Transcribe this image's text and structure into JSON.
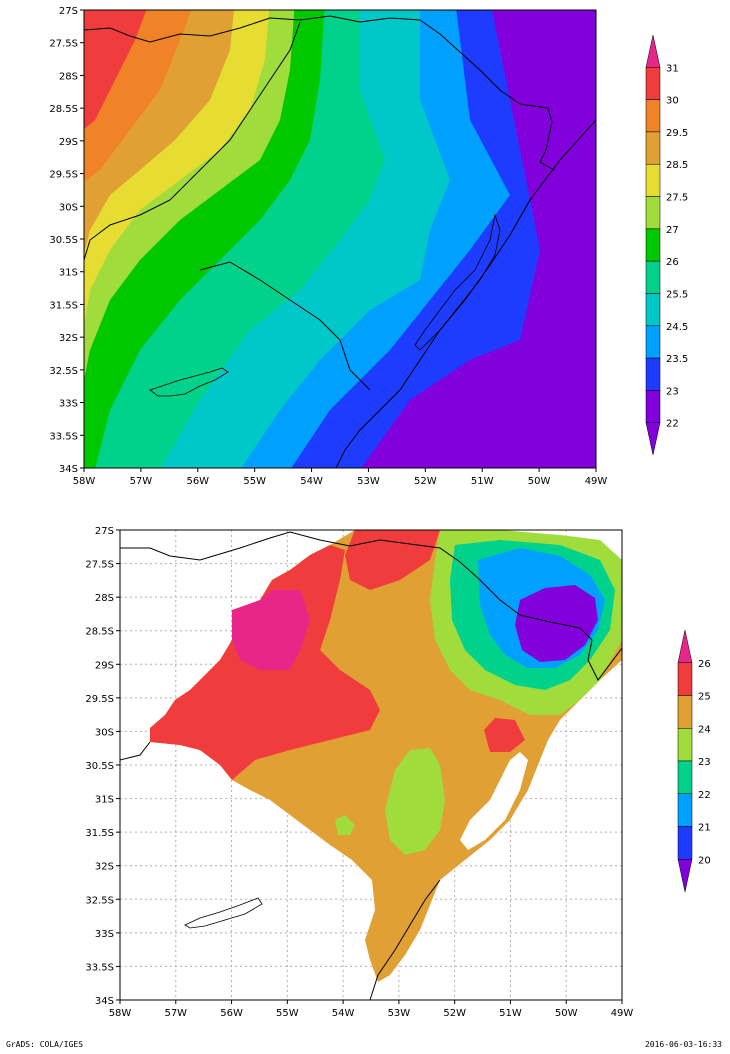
{
  "map_top": {
    "x_ticks": [
      "58W",
      "57W",
      "56W",
      "55W",
      "54W",
      "53W",
      "52W",
      "51W",
      "50W",
      "49W"
    ],
    "y_ticks": [
      "27S",
      "27.5S",
      "28S",
      "28.5S",
      "29S",
      "29.5S",
      "30S",
      "30.5S",
      "31S",
      "31.5S",
      "32S",
      "32.5S",
      "33S",
      "33.5S",
      "34S"
    ],
    "colorbar": {
      "labels": [
        "31",
        "30",
        "29.5",
        "28.5",
        "27.5",
        "27",
        "26",
        "25.5",
        "24.5",
        "23.5",
        "23",
        "22"
      ],
      "colors": [
        "#e8268a",
        "#f03c3c",
        "#f08228",
        "#e0a034",
        "#e6dc32",
        "#a0dc3c",
        "#00c800",
        "#00d28c",
        "#00c8c8",
        "#00a0ff",
        "#1e3cff",
        "#8200dc",
        "#8200dc"
      ]
    }
  },
  "map_bottom": {
    "x_ticks": [
      "58W",
      "57W",
      "56W",
      "55W",
      "54W",
      "53W",
      "52W",
      "51W",
      "50W",
      "49W"
    ],
    "y_ticks": [
      "27S",
      "27.5S",
      "28S",
      "28.5S",
      "29S",
      "29.5S",
      "30S",
      "30.5S",
      "31S",
      "31.5S",
      "32S",
      "32.5S",
      "33S",
      "33.5S",
      "34S"
    ],
    "colorbar": {
      "labels": [
        "26",
        "25",
        "24",
        "23",
        "22",
        "21",
        "20"
      ],
      "colors": [
        "#e8268a",
        "#f03c3c",
        "#e0a034",
        "#a0dc3c",
        "#00d28c",
        "#00a0ff",
        "#1e3cff",
        "#8200dc"
      ]
    }
  },
  "footer": {
    "left": "GrADS: COLA/IGES",
    "right": "2016-06-03-16:33"
  }
}
